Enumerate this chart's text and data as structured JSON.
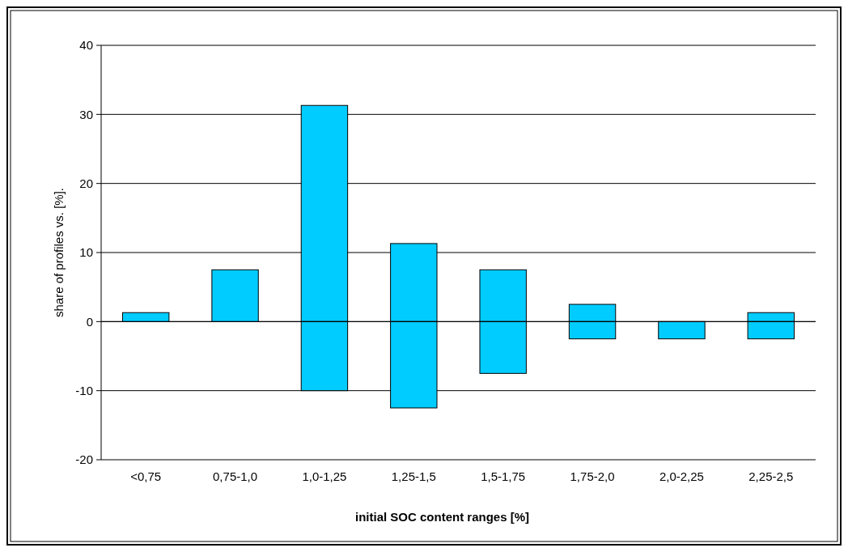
{
  "chart_data": {
    "type": "bar",
    "stacked": true,
    "xlabel": "initial SOC content ranges [%]",
    "ylabel": "share of profiles vs. [%].",
    "categories": [
      "<0,75",
      "0,75-1,0",
      "1,0-1,25",
      "1,25-1,5",
      "1,5-1,75",
      "1,75-2,0",
      "2,0-2,25",
      "2,25-2,5"
    ],
    "series": [
      {
        "color": "#00ccff",
        "values": [
          1.3,
          7.5,
          31.3,
          11.3,
          7.5,
          2.5,
          null,
          1.3
        ]
      },
      {
        "color": "#00ccff",
        "values": [
          null,
          null,
          -10,
          -12.5,
          -7.5,
          -2.5,
          -2.5,
          -2.5
        ]
      }
    ],
    "ylim": [
      -20,
      40
    ],
    "yticks": [
      -20,
      -10,
      0,
      10,
      20,
      30,
      40
    ],
    "grid": "y"
  }
}
